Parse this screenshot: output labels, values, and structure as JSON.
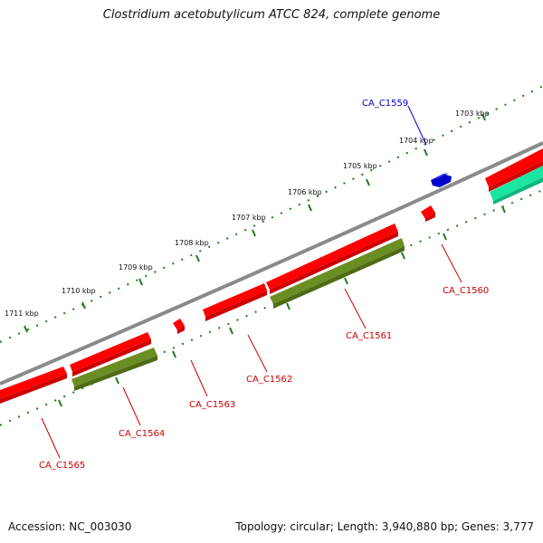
{
  "title": "Clostridium acetobutylicum ATCC 824, complete genome",
  "footer": {
    "accession": "Accession: NC_003030",
    "summary": "Topology: circular; Length: 3,940,880 bp; Genes: 3,777"
  },
  "colors": {
    "backbone": "#808080",
    "red": "#ff0000",
    "olive": "#6b8e23",
    "blue": "#0000ee",
    "teal": "#19e6a0",
    "tick": "#1f7a1f",
    "label_red": "#cc0000",
    "label_blue": "#0000cc"
  },
  "scale_labels": [
    "1703 kbp",
    "1704 kbp",
    "1705 kbp",
    "1706 kbp",
    "1707 kbp",
    "1708 kbp",
    "1709 kbp",
    "1710 kbp",
    "1711 kbp"
  ],
  "gene_labels": [
    {
      "id": "CA_C1559",
      "color": "blue"
    },
    {
      "id": "CA_C1560",
      "color": "red"
    },
    {
      "id": "CA_C1561",
      "color": "red"
    },
    {
      "id": "CA_C1562",
      "color": "red"
    },
    {
      "id": "CA_C1563",
      "color": "red"
    },
    {
      "id": "CA_C1564",
      "color": "red"
    },
    {
      "id": "CA_C1565",
      "color": "red"
    }
  ]
}
